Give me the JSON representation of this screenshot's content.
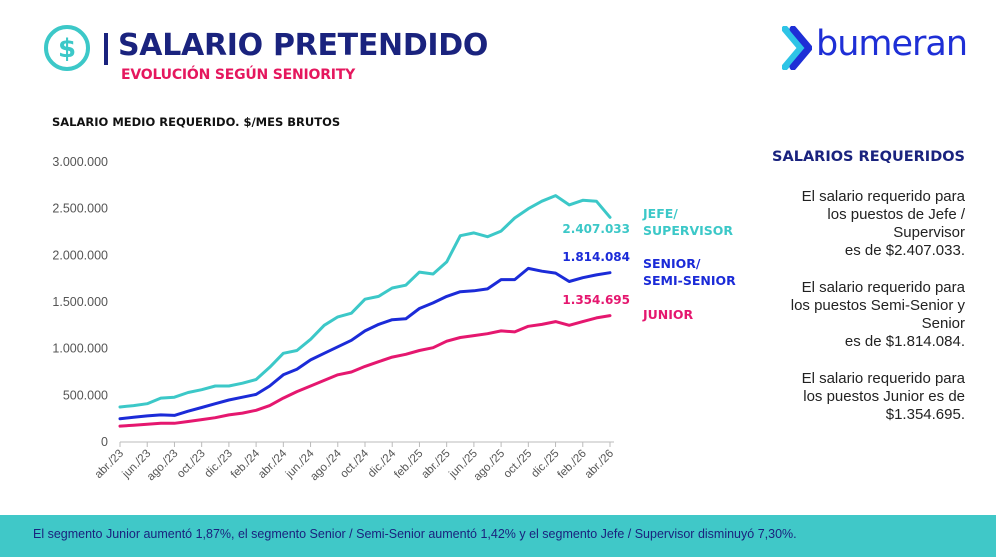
{
  "header": {
    "title": "SALARIO PRETENDIDO",
    "subtitle": "EVOLUCIÓN SEGÚN SENIORITY",
    "icon": "dollar-coin-icon"
  },
  "brand": {
    "name": "bumeran",
    "color": "#1e2fd6",
    "accent": "#2ec4e6"
  },
  "chart_title": "SALARIO MEDIO REQUERIDO. $/MES BRUTOS",
  "chart_data": {
    "type": "line",
    "title": "SALARIO MEDIO REQUERIDO. $/MES BRUTOS",
    "ylim": [
      0,
      3000000
    ],
    "yticks": [
      0,
      500000,
      1000000,
      1500000,
      2000000,
      2500000,
      3000000
    ],
    "ytick_labels": [
      "0",
      "500.000",
      "1.000.000",
      "1.500.000",
      "2.000.000",
      "2.500.000",
      "3.000.000"
    ],
    "x": [
      "abr./23",
      "may./23",
      "jun./23",
      "jul./23",
      "ago./23",
      "sept./23",
      "oct./23",
      "nov./23",
      "dic./23",
      "ene./24",
      "feb./24",
      "mar./24",
      "abr./24",
      "may./24",
      "jun./24",
      "jul./24",
      "ago./24",
      "sept./24",
      "oct./24",
      "nov./24",
      "dic./24",
      "ene./25",
      "feb./25",
      "mar./25",
      "abr./25",
      "may./25",
      "jun./25",
      "jul./25",
      "ago./25",
      "sept./25",
      "oct./25",
      "nov./25",
      "dic./25",
      "ene./26",
      "feb./26",
      "mar./26",
      "abr./26"
    ],
    "xtick_labels": [
      "abr./23",
      "jun./23",
      "ago./23",
      "oct./23",
      "dic./23",
      "feb./24",
      "abr./24",
      "jun./24",
      "ago./24",
      "oct./24",
      "dic./24",
      "feb./25",
      "abr./25",
      "jun./25",
      "ago./25",
      "oct./25",
      "dic./25",
      "feb./26",
      "abr./26"
    ],
    "grid": false,
    "series": [
      {
        "name": "JEFE/ SUPERVISOR",
        "label_lines": [
          "JEFE/",
          "SUPERVISOR"
        ],
        "color": "#3cc8c8",
        "end_label": "2.407.033",
        "values": [
          375000,
          390000,
          410000,
          470000,
          480000,
          530000,
          560000,
          600000,
          600000,
          630000,
          670000,
          800000,
          950000,
          980000,
          1100000,
          1250000,
          1340000,
          1380000,
          1530000,
          1560000,
          1650000,
          1680000,
          1820000,
          1800000,
          1930000,
          2210000,
          2240000,
          2200000,
          2260000,
          2400000,
          2500000,
          2580000,
          2640000,
          2540000,
          2590000,
          2580000,
          2407033
        ]
      },
      {
        "name": "SENIOR/ SEMI-SENIOR",
        "label_lines": [
          "SENIOR/",
          "SEMI-SENIOR"
        ],
        "color": "#1b2bd8",
        "end_label": "1.814.084",
        "values": [
          250000,
          265000,
          280000,
          290000,
          285000,
          330000,
          370000,
          410000,
          450000,
          480000,
          510000,
          600000,
          720000,
          780000,
          880000,
          950000,
          1020000,
          1090000,
          1190000,
          1260000,
          1310000,
          1320000,
          1430000,
          1490000,
          1560000,
          1610000,
          1620000,
          1640000,
          1740000,
          1740000,
          1860000,
          1830000,
          1810000,
          1720000,
          1760000,
          1790000,
          1814084
        ]
      },
      {
        "name": "JUNIOR",
        "label_lines": [
          "JUNIOR"
        ],
        "color": "#e5176f",
        "end_label": "1.354.695",
        "values": [
          170000,
          180000,
          190000,
          200000,
          200000,
          220000,
          240000,
          260000,
          290000,
          310000,
          340000,
          390000,
          470000,
          540000,
          600000,
          660000,
          720000,
          750000,
          810000,
          860000,
          910000,
          940000,
          980000,
          1010000,
          1080000,
          1120000,
          1140000,
          1160000,
          1190000,
          1180000,
          1240000,
          1260000,
          1290000,
          1250000,
          1290000,
          1330000,
          1354695
        ]
      }
    ]
  },
  "side_panel": {
    "title": "SALARIOS REQUERIDOS",
    "paragraphs": [
      [
        "El salario requerido para",
        "los puestos de Jefe /",
        "Supervisor",
        "es de $2.407.033."
      ],
      [
        "El salario requerido para",
        "los puestos Semi-Senior y",
        "Senior",
        "es de $1.814.084."
      ],
      [
        "El salario requerido para",
        "los puestos Junior es de",
        "$1.354.695."
      ]
    ]
  },
  "footer": {
    "text": "El segmento Junior aumentó 1,87%, el segmento Senior / Semi-Senior aumentó 1,42% y el segmento Jefe / Supervisor disminuyó 7,30%.",
    "color": "#40c8c8"
  }
}
